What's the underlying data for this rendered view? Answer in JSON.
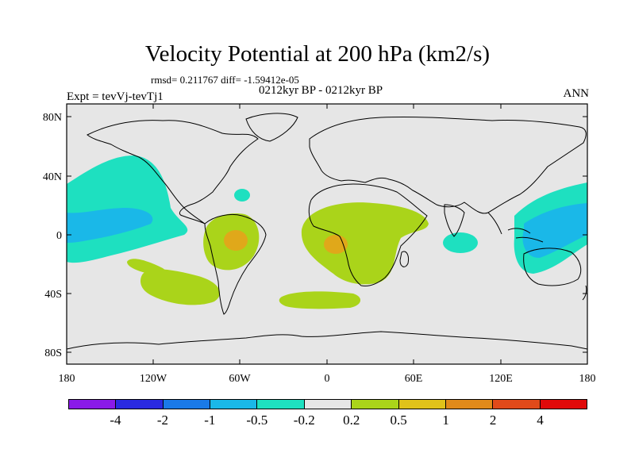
{
  "map": {
    "title": "Velocity Potential at 200 hPa (km2/s)",
    "stats": "rmsd= 0.211767 diff= -1.59412e-05",
    "experiment": "Expt = tevVj-tevTj1",
    "period": "0212kyr BP - 0212kyr BP",
    "season": "ANN",
    "lat_labels": [
      "80N",
      "40N",
      "0",
      "40S",
      "80S"
    ],
    "lon_labels": [
      "180",
      "120W",
      "60W",
      "0",
      "60E",
      "120E",
      "180"
    ],
    "background_color": "#e6e6e6",
    "regions": [
      {
        "level": "-0.5 to -0.2",
        "color": "#1ee0c0",
        "location": "eastern Pacific / western Americas"
      },
      {
        "level": "-1 to -0.5",
        "color": "#1ab8e8",
        "location": "eastern tropical Pacific"
      },
      {
        "level": "0.2 to 0.5",
        "color": "#aad41a",
        "location": "South America and Africa"
      },
      {
        "level": "0.5 to 1",
        "color": "#e0a81a",
        "location": "Amazon and Congo basins"
      },
      {
        "level": "-1 to -0.5",
        "color": "#1ab8e8",
        "location": "western Pacific / maritime continent"
      }
    ]
  },
  "colorbar": {
    "colors": [
      "#8a1ae8",
      "#2a2ae0",
      "#1a7ae8",
      "#1ab8e8",
      "#1ee0c0",
      "#e6e6e6",
      "#aad41a",
      "#e0c21a",
      "#e08a1a",
      "#e04a1a",
      "#e00a0a"
    ],
    "labels": [
      "-4",
      "-2",
      "-1",
      "-0.5",
      "-0.2",
      "0.2",
      "0.5",
      "1",
      "2",
      "4"
    ]
  }
}
